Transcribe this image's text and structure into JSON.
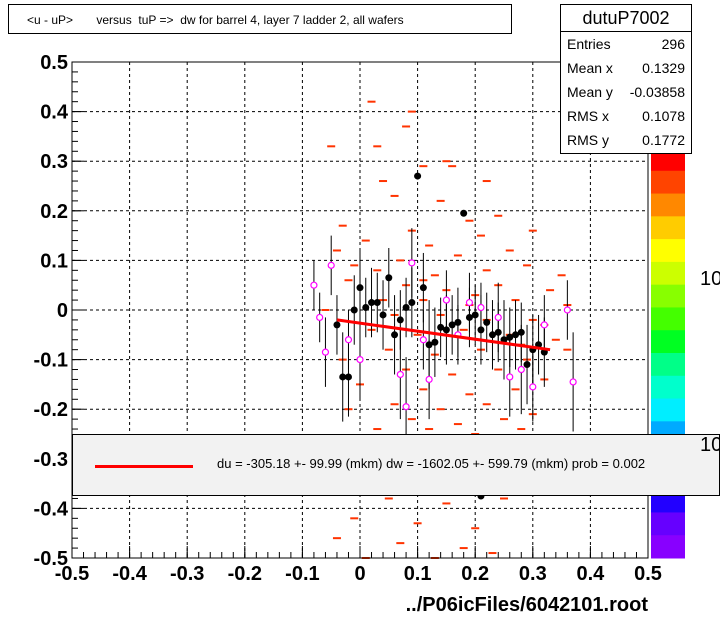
{
  "title": "<u - uP>       versus  tuP =>  dw for barrel 4, layer 7 ladder 2, all wafers",
  "stats": {
    "name": "dutuP7002",
    "rows": [
      {
        "label": "Entries",
        "value": "296"
      },
      {
        "label": "Mean x",
        "value": "0.1329"
      },
      {
        "label": "Mean y",
        "value": "-0.03858"
      },
      {
        "label": "RMS x",
        "value": "0.1078"
      },
      {
        "label": "RMS y",
        "value": "0.1772"
      }
    ]
  },
  "legend": {
    "text": "du = -305.18 +- 99.99 (mkm) dw = -1602.05 +- 599.79 (mkm) prob = 0.002",
    "line_color": "#ff0000"
  },
  "filename": "../P06icFiles/6042101.root",
  "palette_labels": [
    "10",
    "10"
  ],
  "chart_data": {
    "type": "scatter",
    "xlim": [
      -0.5,
      0.5
    ],
    "ylim": [
      -0.5,
      0.5
    ],
    "x_ticks": [
      "-0.5",
      "-0.4",
      "-0.3",
      "-0.2",
      "-0.1",
      "0",
      "0.1",
      "0.2",
      "0.3",
      "0.4",
      "0.5"
    ],
    "y_ticks": [
      "-0.5",
      "-0.4",
      "-0.3",
      "-0.2",
      "-0.1",
      "0",
      "0.1",
      "0.2",
      "0.3",
      "0.4",
      "0.5"
    ],
    "grid": true,
    "colors": {
      "histogram": "#ff3300",
      "profile_black": "#000000",
      "profile_magenta": "#ff00ff",
      "fit": "#ff0000"
    },
    "histogram_cells": [
      {
        "x": 0.02,
        "y": 0.42
      },
      {
        "x": 0.03,
        "y": 0.33
      },
      {
        "x": -0.05,
        "y": 0.33
      },
      {
        "x": 0.08,
        "y": 0.37
      },
      {
        "x": 0.11,
        "y": 0.29
      },
      {
        "x": 0.04,
        "y": 0.26
      },
      {
        "x": 0.16,
        "y": 0.29
      },
      {
        "x": 0.22,
        "y": 0.26
      },
      {
        "x": 0.06,
        "y": 0.23
      },
      {
        "x": 0.14,
        "y": 0.22
      },
      {
        "x": -0.03,
        "y": 0.17
      },
      {
        "x": 0.09,
        "y": 0.16
      },
      {
        "x": 0.19,
        "y": 0.18
      },
      {
        "x": 0.24,
        "y": 0.19
      },
      {
        "x": 0.01,
        "y": 0.14
      },
      {
        "x": 0.12,
        "y": 0.13
      },
      {
        "x": 0.21,
        "y": 0.15
      },
      {
        "x": 0.3,
        "y": 0.16
      },
      {
        "x": -0.04,
        "y": 0.12
      },
      {
        "x": 0.07,
        "y": 0.1
      },
      {
        "x": 0.17,
        "y": 0.11
      },
      {
        "x": 0.26,
        "y": 0.12
      },
      {
        "x": 0.03,
        "y": 0.08
      },
      {
        "x": 0.13,
        "y": 0.07
      },
      {
        "x": 0.22,
        "y": 0.08
      },
      {
        "x": 0.29,
        "y": 0.09
      },
      {
        "x": 0.35,
        "y": 0.07
      },
      {
        "x": -0.02,
        "y": 0.06
      },
      {
        "x": 0.08,
        "y": 0.05
      },
      {
        "x": 0.15,
        "y": 0.04
      },
      {
        "x": 0.24,
        "y": 0.05
      },
      {
        "x": 0.33,
        "y": 0.04
      },
      {
        "x": 0.04,
        "y": 0.02
      },
      {
        "x": 0.11,
        "y": 0.02
      },
      {
        "x": 0.19,
        "y": 0.01
      },
      {
        "x": 0.27,
        "y": 0.02
      },
      {
        "x": 0.36,
        "y": 0.01
      },
      {
        "x": -0.06,
        "y": 0.0
      },
      {
        "x": 0.06,
        "y": -0.01
      },
      {
        "x": 0.14,
        "y": -0.01
      },
      {
        "x": 0.22,
        "y": -0.02
      },
      {
        "x": 0.3,
        "y": -0.02
      },
      {
        "x": 0.02,
        "y": -0.04
      },
      {
        "x": 0.1,
        "y": -0.05
      },
      {
        "x": 0.18,
        "y": -0.04
      },
      {
        "x": 0.26,
        "y": -0.05
      },
      {
        "x": 0.34,
        "y": -0.06
      },
      {
        "x": 0.05,
        "y": -0.08
      },
      {
        "x": 0.13,
        "y": -0.09
      },
      {
        "x": 0.21,
        "y": -0.08
      },
      {
        "x": 0.29,
        "y": -0.1
      },
      {
        "x": -0.03,
        "y": -0.1
      },
      {
        "x": 0.08,
        "y": -0.12
      },
      {
        "x": 0.16,
        "y": -0.13
      },
      {
        "x": 0.24,
        "y": -0.12
      },
      {
        "x": 0.32,
        "y": -0.14
      },
      {
        "x": 0.0,
        "y": -0.15
      },
      {
        "x": 0.11,
        "y": -0.16
      },
      {
        "x": 0.19,
        "y": -0.17
      },
      {
        "x": 0.27,
        "y": -0.16
      },
      {
        "x": 0.06,
        "y": -0.19
      },
      {
        "x": 0.14,
        "y": -0.2
      },
      {
        "x": 0.22,
        "y": -0.19
      },
      {
        "x": 0.3,
        "y": -0.21
      },
      {
        "x": -0.02,
        "y": -0.2
      },
      {
        "x": 0.09,
        "y": -0.22
      },
      {
        "x": 0.17,
        "y": -0.23
      },
      {
        "x": 0.25,
        "y": -0.22
      },
      {
        "x": 0.03,
        "y": -0.24
      },
      {
        "x": 0.12,
        "y": -0.24
      },
      {
        "x": 0.2,
        "y": -0.25
      },
      {
        "x": 0.28,
        "y": -0.24
      },
      {
        "x": 0.05,
        "y": -0.38
      },
      {
        "x": 0.15,
        "y": -0.39
      },
      {
        "x": 0.25,
        "y": -0.38
      },
      {
        "x": -0.01,
        "y": -0.42
      },
      {
        "x": 0.1,
        "y": -0.43
      },
      {
        "x": 0.2,
        "y": -0.44
      },
      {
        "x": 0.07,
        "y": -0.47
      },
      {
        "x": 0.18,
        "y": -0.48
      },
      {
        "x": 0.01,
        "y": -0.5
      },
      {
        "x": 0.13,
        "y": -0.5
      },
      {
        "x": 0.23,
        "y": -0.49
      },
      {
        "x": -0.04,
        "y": -0.46
      },
      {
        "x": 0.32,
        "y": -0.03
      },
      {
        "x": 0.36,
        "y": -0.08
      },
      {
        "x": 0.15,
        "y": 0.3
      },
      {
        "x": 0.09,
        "y": 0.4
      },
      {
        "x": 0.11,
        "y": 0.06
      },
      {
        "x": 0.2,
        "y": 0.03
      },
      {
        "x": 0.28,
        "y": -0.07
      },
      {
        "x": -0.01,
        "y": 0.09
      }
    ],
    "profile_black": [
      {
        "x": -0.04,
        "y": -0.03,
        "err": 0.06
      },
      {
        "x": -0.03,
        "y": -0.135,
        "err": 0.09
      },
      {
        "x": -0.02,
        "y": -0.135,
        "err": 0.08
      },
      {
        "x": -0.01,
        "y": 0.0,
        "err": 0.07
      },
      {
        "x": 0.0,
        "y": 0.045,
        "err": 0.08
      },
      {
        "x": 0.01,
        "y": 0.005,
        "err": 0.06
      },
      {
        "x": 0.02,
        "y": 0.015,
        "err": 0.07
      },
      {
        "x": 0.03,
        "y": 0.015,
        "err": 0.06
      },
      {
        "x": 0.04,
        "y": -0.01,
        "err": 0.07
      },
      {
        "x": 0.05,
        "y": 0.065,
        "err": 0.06
      },
      {
        "x": 0.06,
        "y": -0.05,
        "err": 0.08
      },
      {
        "x": 0.07,
        "y": -0.02,
        "err": 0.06
      },
      {
        "x": 0.08,
        "y": 0.005,
        "err": 0.06
      },
      {
        "x": 0.09,
        "y": 0.015,
        "err": 0.07
      },
      {
        "x": 0.1,
        "y": 0.27,
        "err": 0.0
      },
      {
        "x": 0.11,
        "y": 0.045,
        "err": 0.07
      },
      {
        "x": 0.12,
        "y": -0.07,
        "err": 0.09
      },
      {
        "x": 0.13,
        "y": -0.065,
        "err": 0.07
      },
      {
        "x": 0.14,
        "y": -0.035,
        "err": 0.06
      },
      {
        "x": 0.15,
        "y": -0.04,
        "err": 0.07
      },
      {
        "x": 0.16,
        "y": -0.03,
        "err": 0.06
      },
      {
        "x": 0.17,
        "y": -0.025,
        "err": 0.07
      },
      {
        "x": 0.18,
        "y": 0.195,
        "err": 0.0
      },
      {
        "x": 0.19,
        "y": -0.015,
        "err": 0.06
      },
      {
        "x": 0.2,
        "y": -0.01,
        "err": 0.06
      },
      {
        "x": 0.21,
        "y": -0.04,
        "err": 0.07
      },
      {
        "x": 0.22,
        "y": -0.025,
        "err": 0.06
      },
      {
        "x": 0.23,
        "y": -0.05,
        "err": 0.07
      },
      {
        "x": 0.24,
        "y": -0.045,
        "err": 0.06
      },
      {
        "x": 0.25,
        "y": -0.06,
        "err": 0.08
      },
      {
        "x": 0.26,
        "y": -0.055,
        "err": 0.06
      },
      {
        "x": 0.27,
        "y": -0.05,
        "err": 0.07
      },
      {
        "x": 0.28,
        "y": -0.045,
        "err": 0.06
      },
      {
        "x": 0.29,
        "y": -0.11,
        "err": 0.08
      },
      {
        "x": 0.3,
        "y": -0.08,
        "err": 0.07
      },
      {
        "x": 0.31,
        "y": -0.07,
        "err": 0.06
      },
      {
        "x": 0.32,
        "y": -0.085,
        "err": 0.07
      },
      {
        "x": 0.21,
        "y": -0.375,
        "err": 0.0
      }
    ],
    "profile_magenta": [
      {
        "x": -0.08,
        "y": 0.05,
        "err": 0.05
      },
      {
        "x": -0.07,
        "y": -0.015,
        "err": 0.05
      },
      {
        "x": -0.06,
        "y": -0.085,
        "err": 0.07
      },
      {
        "x": -0.05,
        "y": 0.09,
        "err": 0.06
      },
      {
        "x": -0.02,
        "y": -0.06,
        "err": 0.06
      },
      {
        "x": 0.0,
        "y": -0.1,
        "err": 0.08
      },
      {
        "x": 0.07,
        "y": -0.13,
        "err": 0.09
      },
      {
        "x": 0.08,
        "y": -0.195,
        "err": 0.1
      },
      {
        "x": 0.09,
        "y": 0.095,
        "err": 0.07
      },
      {
        "x": 0.11,
        "y": -0.06,
        "err": 0.06
      },
      {
        "x": 0.12,
        "y": -0.14,
        "err": 0.08
      },
      {
        "x": 0.15,
        "y": 0.02,
        "err": 0.06
      },
      {
        "x": 0.17,
        "y": -0.05,
        "err": 0.06
      },
      {
        "x": 0.19,
        "y": 0.015,
        "err": 0.06
      },
      {
        "x": 0.21,
        "y": 0.005,
        "err": 0.05
      },
      {
        "x": 0.24,
        "y": -0.015,
        "err": 0.07
      },
      {
        "x": 0.26,
        "y": -0.135,
        "err": 0.08
      },
      {
        "x": 0.28,
        "y": -0.12,
        "err": 0.09
      },
      {
        "x": 0.3,
        "y": -0.155,
        "err": 0.07
      },
      {
        "x": 0.32,
        "y": -0.03,
        "err": 0.06
      },
      {
        "x": 0.36,
        "y": 0.0,
        "err": 0.06
      },
      {
        "x": 0.37,
        "y": -0.145,
        "err": 0.1
      }
    ],
    "fit_line": {
      "x": [
        -0.04,
        0.33
      ],
      "y": [
        -0.02,
        -0.08
      ]
    },
    "palette": [
      "#ff0000",
      "#ff4400",
      "#ff8800",
      "#ffcc00",
      "#ffff00",
      "#ccff00",
      "#88ff00",
      "#44ff00",
      "#00ff22",
      "#00ff88",
      "#00ffcc",
      "#00eeff",
      "#00aaff",
      "#0066ff",
      "#0022ff",
      "#2200ff",
      "#6600ff",
      "#8800ff"
    ]
  }
}
